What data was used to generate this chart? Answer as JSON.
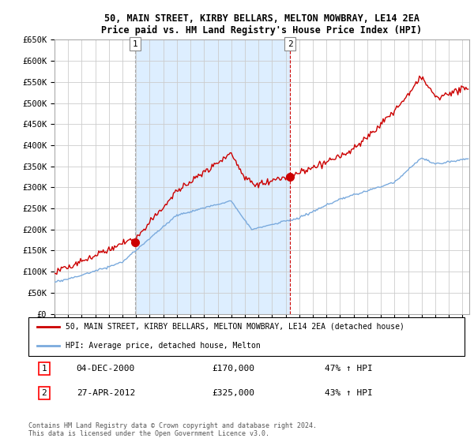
{
  "title": "50, MAIN STREET, KIRBY BELLARS, MELTON MOWBRAY, LE14 2EA",
  "subtitle": "Price paid vs. HM Land Registry's House Price Index (HPI)",
  "ylim": [
    0,
    650000
  ],
  "yticks": [
    0,
    50000,
    100000,
    150000,
    200000,
    250000,
    300000,
    350000,
    400000,
    450000,
    500000,
    550000,
    600000,
    650000
  ],
  "ytick_labels": [
    "£0",
    "£50K",
    "£100K",
    "£150K",
    "£200K",
    "£250K",
    "£300K",
    "£350K",
    "£400K",
    "£450K",
    "£500K",
    "£550K",
    "£600K",
    "£650K"
  ],
  "purchase1_date": 2000.92,
  "purchase1_price": 170000,
  "purchase1_label": "04-DEC-2000",
  "purchase1_pct": "47% ↑ HPI",
  "purchase2_date": 2012.32,
  "purchase2_price": 325000,
  "purchase2_label": "27-APR-2012",
  "purchase2_pct": "43% ↑ HPI",
  "red_color": "#cc0000",
  "blue_color": "#7aaadd",
  "shade_color": "#ddeeff",
  "grid_color": "#cccccc",
  "bg_color": "#eef4ff",
  "legend_line1": "50, MAIN STREET, KIRBY BELLARS, MELTON MOWBRAY, LE14 2EA (detached house)",
  "legend_line2": "HPI: Average price, detached house, Melton",
  "footer": "Contains HM Land Registry data © Crown copyright and database right 2024.\nThis data is licensed under the Open Government Licence v3.0.",
  "xlim_start": 1995.0,
  "xlim_end": 2025.5
}
